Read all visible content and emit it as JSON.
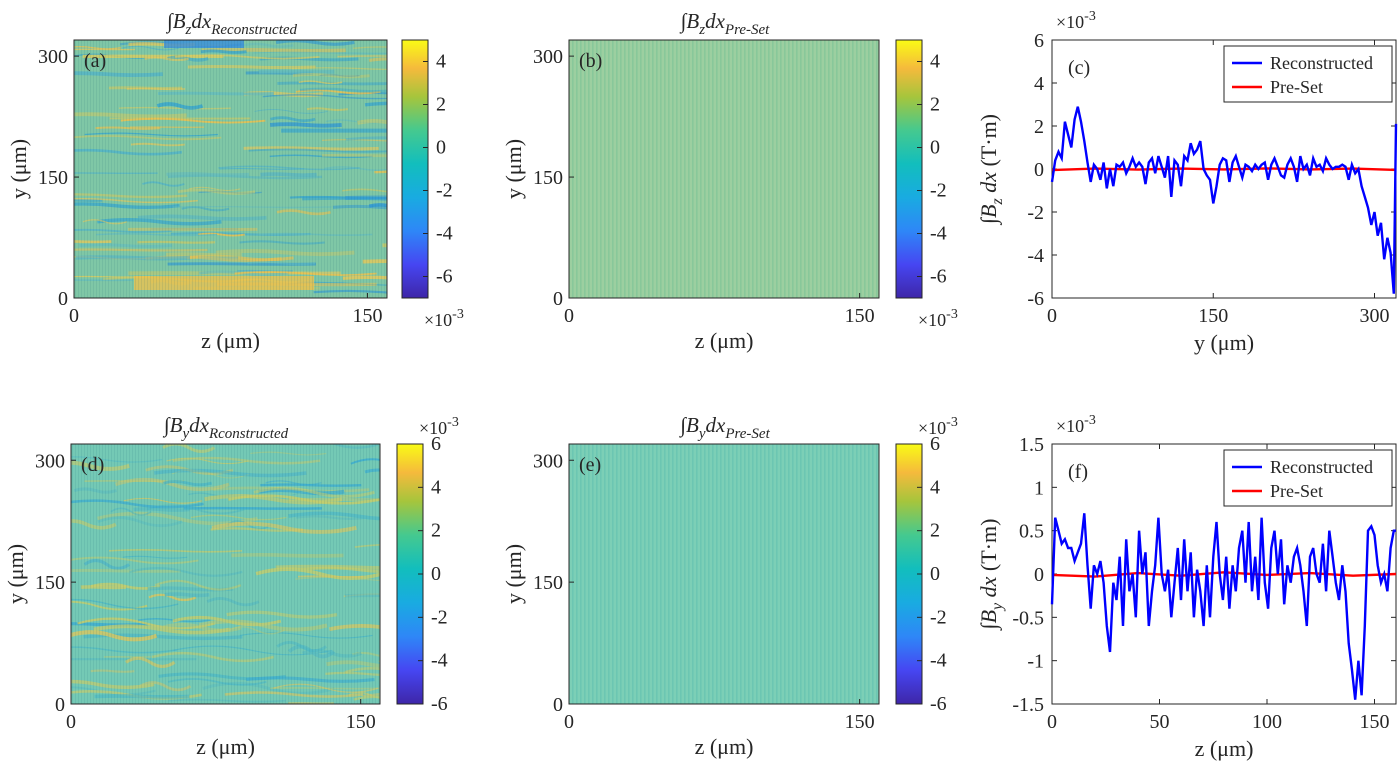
{
  "chart_data": [
    {
      "id": "a",
      "type": "heatmap",
      "panel_label": "(a)",
      "title": {
        "integral": "∫",
        "var": "B",
        "sub": "z",
        "rest": "dx",
        "tail": "Reconstructed"
      },
      "xlabel": "z (μm)",
      "ylabel": "y (μm)",
      "xticks": [
        "0",
        "150"
      ],
      "yticks": [
        "0",
        "150",
        "300"
      ],
      "xlim": [
        0,
        160
      ],
      "ylim": [
        0,
        320
      ],
      "colorbar": {
        "ticks": [
          "4",
          "2",
          "0",
          "-2",
          "-4",
          "-6"
        ],
        "range": [
          -7,
          5
        ],
        "multiplier": "×10",
        "exponent": "-3",
        "multiplier_position": "bottom"
      },
      "texture": "reconstructed-z"
    },
    {
      "id": "b",
      "type": "heatmap",
      "panel_label": "(b)",
      "title": {
        "integral": "∫",
        "var": "B",
        "sub": "z",
        "rest": "dx",
        "tail": "Pre-Set"
      },
      "xlabel": "z (μm)",
      "ylabel": "y (μm)",
      "xticks": [
        "0",
        "150"
      ],
      "yticks": [
        "0",
        "150",
        "300"
      ],
      "xlim": [
        0,
        160
      ],
      "ylim": [
        0,
        320
      ],
      "colorbar": {
        "ticks": [
          "4",
          "2",
          "0",
          "-2",
          "-4",
          "-6"
        ],
        "range": [
          -7,
          5
        ],
        "multiplier": "×10",
        "exponent": "-3",
        "multiplier_position": "bottom"
      },
      "texture": "preset-z"
    },
    {
      "id": "c",
      "type": "line",
      "panel_label": "(c)",
      "xlabel": "y (μm)",
      "ylabel": {
        "integral": "∫",
        "var": "B",
        "sub": "z",
        "rest": "dx",
        "unit": "(T·m)"
      },
      "xticks": [
        "0",
        "150",
        "300"
      ],
      "yticks": [
        "6",
        "4",
        "2",
        "0",
        "-2",
        "-4",
        "-6"
      ],
      "xlim": [
        0,
        320
      ],
      "ylim": [
        -6,
        6
      ],
      "multiplier": "×10",
      "exponent": "-3",
      "legend": {
        "position": "top-right"
      },
      "series": [
        {
          "name": "Reconstructed",
          "color": "#0000ff",
          "x": [
            0,
            3,
            6,
            9,
            12,
            15,
            18,
            21,
            24,
            27,
            30,
            33,
            36,
            39,
            42,
            45,
            48,
            51,
            54,
            57,
            60,
            63,
            66,
            69,
            72,
            75,
            78,
            81,
            84,
            87,
            90,
            93,
            96,
            99,
            102,
            105,
            108,
            111,
            114,
            117,
            120,
            123,
            126,
            129,
            132,
            135,
            138,
            141,
            144,
            147,
            150,
            153,
            156,
            159,
            162,
            165,
            168,
            171,
            174,
            177,
            180,
            183,
            186,
            189,
            192,
            195,
            198,
            201,
            204,
            207,
            210,
            213,
            216,
            219,
            222,
            225,
            228,
            231,
            234,
            237,
            240,
            243,
            246,
            249,
            252,
            255,
            258,
            261,
            264,
            267,
            270,
            273,
            276,
            279,
            282,
            285,
            288,
            291,
            294,
            297,
            300,
            303,
            306,
            309,
            312,
            315,
            318,
            320
          ],
          "y": [
            -0.6,
            0.4,
            0.8,
            0.5,
            2.2,
            1.6,
            1.0,
            2.3,
            2.9,
            2.2,
            1.3,
            0.3,
            -0.6,
            0.2,
            0.0,
            -0.5,
            0.3,
            -0.9,
            0.0,
            -0.8,
            0.2,
            0.1,
            0.3,
            -0.2,
            0.1,
            0.5,
            0.1,
            0.3,
            0.1,
            -0.7,
            0.3,
            0.5,
            -0.2,
            0.6,
            0.1,
            -0.4,
            0.6,
            -1.3,
            0.4,
            0.2,
            -0.8,
            0.6,
            0.4,
            1.2,
            0.7,
            0.9,
            1.3,
            0.0,
            -0.3,
            -0.5,
            -1.6,
            -0.8,
            0.2,
            0.5,
            0.4,
            -0.6,
            0.3,
            0.6,
            0.1,
            -0.4,
            0.2,
            0.1,
            -0.1,
            0.2,
            0.0,
            0.2,
            0.3,
            -0.5,
            0.2,
            0.5,
            0.1,
            -0.3,
            -0.4,
            0.2,
            0.5,
            0.1,
            -0.6,
            0.6,
            0.0,
            0.2,
            -0.3,
            0.5,
            0.1,
            0.2,
            -0.1,
            0.5,
            0.2,
            0.0,
            0.1,
            0.1,
            0.2,
            0.1,
            -0.5,
            0.2,
            -0.2,
            0.0,
            -0.8,
            -1.3,
            -1.8,
            -2.6,
            -2.0,
            -3.1,
            -2.5,
            -4.2,
            -3.2,
            -3.9,
            -5.8,
            2.1
          ]
        },
        {
          "name": "Pre-Set",
          "color": "#ff0000",
          "x": [
            0,
            40,
            80,
            120,
            160,
            200,
            240,
            280,
            320
          ],
          "y": [
            -0.05,
            0.02,
            -0.03,
            0.02,
            -0.02,
            0.03,
            -0.02,
            0.02,
            -0.04
          ]
        }
      ]
    },
    {
      "id": "d",
      "type": "heatmap",
      "panel_label": "(d)",
      "title": {
        "integral": "∫",
        "var": "B",
        "sub": "y",
        "rest": "dx",
        "tail": "Rconstructed"
      },
      "xlabel": "z (μm)",
      "ylabel": "y (μm)",
      "xticks": [
        "0",
        "150"
      ],
      "yticks": [
        "0",
        "150",
        "300"
      ],
      "xlim": [
        0,
        160
      ],
      "ylim": [
        0,
        320
      ],
      "colorbar": {
        "ticks": [
          "6",
          "4",
          "2",
          "0",
          "-2",
          "-4",
          "-6"
        ],
        "range": [
          -6,
          6
        ],
        "multiplier": "×10",
        "exponent": "-3",
        "multiplier_position": "top"
      },
      "texture": "reconstructed-y"
    },
    {
      "id": "e",
      "type": "heatmap",
      "panel_label": "(e)",
      "title": {
        "integral": "∫",
        "var": "B",
        "sub": "y",
        "rest": "dx",
        "tail": "Pre-Set"
      },
      "xlabel": "z (μm)",
      "ylabel": "y (μm)",
      "xticks": [
        "0",
        "150"
      ],
      "yticks": [
        "0",
        "150",
        "300"
      ],
      "xlim": [
        0,
        160
      ],
      "ylim": [
        0,
        320
      ],
      "colorbar": {
        "ticks": [
          "6",
          "4",
          "2",
          "0",
          "-2",
          "-4",
          "-6"
        ],
        "range": [
          -6,
          6
        ],
        "multiplier": "×10",
        "exponent": "-3",
        "multiplier_position": "top"
      },
      "texture": "preset-y"
    },
    {
      "id": "f",
      "type": "line",
      "panel_label": "(f)",
      "xlabel": "z (μm)",
      "ylabel": {
        "integral": "∫",
        "var": "B",
        "sub": "y",
        "rest": "dx",
        "unit": "(T·m)"
      },
      "xticks": [
        "0",
        "50",
        "100",
        "150"
      ],
      "yticks": [
        "1.5",
        "1",
        "0.5",
        "0",
        "-0.5",
        "-1",
        "-1.5"
      ],
      "xlim": [
        0,
        160
      ],
      "ylim": [
        -1.5,
        1.5
      ],
      "multiplier": "×10",
      "exponent": "-3",
      "legend": {
        "position": "top-right"
      },
      "series": [
        {
          "name": "Reconstructed",
          "color": "#0000ff",
          "x": [
            0,
            1.5,
            3,
            4.5,
            6,
            7.5,
            9,
            10.5,
            12,
            13.5,
            15,
            16.5,
            18,
            19.5,
            21,
            22.5,
            24,
            25.5,
            27,
            28.5,
            30,
            31.5,
            33,
            34.5,
            36,
            37.5,
            39,
            40.5,
            42,
            43.5,
            45,
            46.5,
            48,
            49.5,
            51,
            52.5,
            54,
            55.5,
            57,
            58.5,
            60,
            61.5,
            63,
            64.5,
            66,
            67.5,
            69,
            70.5,
            72,
            73.5,
            75,
            76.5,
            78,
            79.5,
            81,
            82.5,
            84,
            85.5,
            87,
            88.5,
            90,
            91.5,
            93,
            94.5,
            96,
            97.5,
            99,
            100.5,
            102,
            103.5,
            105,
            106.5,
            108,
            109.5,
            111,
            112.5,
            114,
            115.5,
            117,
            118.5,
            120,
            121.5,
            123,
            124.5,
            126,
            127.5,
            129,
            130.5,
            132,
            133.5,
            135,
            136.5,
            138,
            139.5,
            141,
            142.5,
            144,
            145.5,
            147,
            148.5,
            150,
            151.5,
            153,
            154.5,
            156,
            157.5,
            159,
            160
          ],
          "y": [
            -0.35,
            0.65,
            0.5,
            0.35,
            0.4,
            0.3,
            0.3,
            0.15,
            0.25,
            0.35,
            0.7,
            0.1,
            -0.4,
            0.1,
            0.0,
            0.15,
            -0.1,
            -0.6,
            -0.9,
            -0.1,
            -0.3,
            0.2,
            -0.6,
            0.4,
            -0.2,
            0.0,
            -0.5,
            0.5,
            0.0,
            0.25,
            -0.6,
            -0.2,
            0.1,
            0.65,
            0.0,
            -0.2,
            0.05,
            -0.5,
            -0.1,
            0.3,
            -0.3,
            0.4,
            -0.2,
            0.25,
            -0.5,
            0.05,
            -0.2,
            -0.6,
            0.1,
            -0.5,
            0.2,
            0.6,
            0.0,
            -0.3,
            0.2,
            -0.4,
            0.1,
            -0.2,
            0.3,
            0.5,
            -0.1,
            0.6,
            -0.2,
            0.2,
            -0.3,
            0.65,
            -0.1,
            -0.4,
            0.3,
            0.5,
            0.0,
            0.4,
            -0.35,
            0.1,
            -0.1,
            0.2,
            0.3,
            0.1,
            -0.2,
            -0.6,
            0.2,
            0.3,
            0.0,
            -0.1,
            0.35,
            -0.2,
            0.5,
            0.2,
            -0.1,
            -0.3,
            0.1,
            -0.2,
            -0.8,
            -1.1,
            -1.45,
            -1.0,
            -1.4,
            -0.6,
            0.5,
            0.55,
            0.45,
            0.1,
            -0.1,
            0.0,
            -0.2,
            0.3,
            0.5,
            0.5
          ],
          "note": ""
        },
        {
          "name": "Pre-Set",
          "color": "#ff0000",
          "x": [
            0,
            20,
            40,
            60,
            80,
            100,
            120,
            140,
            160
          ],
          "y": [
            -0.01,
            -0.03,
            0.01,
            -0.02,
            0.02,
            -0.01,
            0.01,
            -0.02,
            0.0
          ]
        }
      ]
    }
  ]
}
